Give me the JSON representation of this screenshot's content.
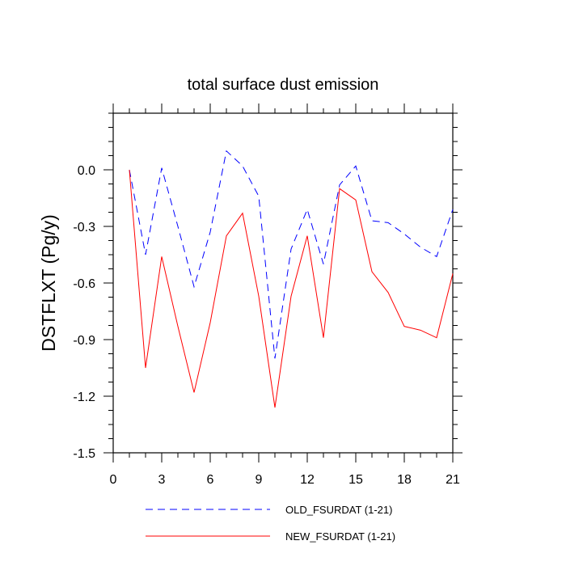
{
  "chart_data": {
    "type": "line",
    "title": "total surface dust emission",
    "xlabel": "",
    "ylabel": "DSTFLXT  (Pg/y)",
    "xlim": [
      0,
      21
    ],
    "ylim": [
      -1.5,
      0.3
    ],
    "xticks": [
      0,
      3,
      6,
      9,
      12,
      15,
      18,
      21
    ],
    "xtick_labels": [
      "0",
      "3",
      "6",
      "9",
      "12",
      "15",
      "18",
      "21"
    ],
    "yticks": [
      -1.5,
      -1.2,
      -0.9,
      -0.6,
      -0.3,
      0.0
    ],
    "ytick_labels": [
      "-1.5",
      "-1.2",
      "-0.9",
      "-0.6",
      "-0.3",
      "0.0"
    ],
    "grid": false,
    "legend_position": "bottom",
    "x": [
      1,
      2,
      3,
      4,
      5,
      6,
      7,
      8,
      9,
      10,
      11,
      12,
      13,
      14,
      15,
      16,
      17,
      18,
      19,
      20,
      21
    ],
    "series": [
      {
        "name": "OLD_FSURDAT (1-21)",
        "color": "#0000ff",
        "dash": "dashed",
        "values": [
          0.0,
          -0.45,
          0.01,
          -0.3,
          -0.62,
          -0.33,
          0.1,
          0.02,
          -0.14,
          -1.0,
          -0.42,
          -0.21,
          -0.5,
          -0.08,
          0.02,
          -0.27,
          -0.28,
          -0.34,
          -0.41,
          -0.46,
          -0.21
        ]
      },
      {
        "name": "NEW_FSURDAT (1-21)",
        "color": "#ff0000",
        "dash": "solid",
        "values": [
          0.0,
          -1.05,
          -0.46,
          -0.83,
          -1.18,
          -0.81,
          -0.35,
          -0.23,
          -0.67,
          -1.26,
          -0.67,
          -0.35,
          -0.89,
          -0.1,
          -0.16,
          -0.54,
          -0.65,
          -0.83,
          -0.85,
          -0.89,
          -0.55
        ]
      }
    ]
  }
}
